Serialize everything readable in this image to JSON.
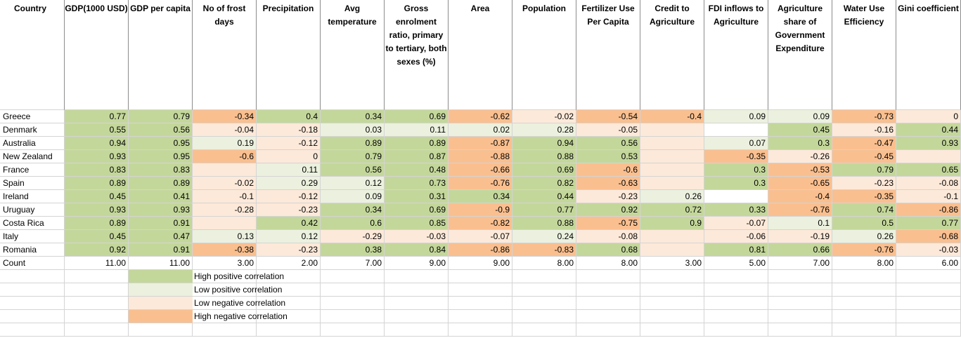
{
  "headers": [
    "Country",
    "GDP(1000 USD)",
    "GDP per capita",
    "No of frost days",
    "Precipitation",
    "Avg temperature",
    "Gross enrolment ratio, primary to tertiary, both sexes (%)",
    "Area",
    "Population",
    "Fertilizer Use Per Capita",
    "Credit to Agriculture",
    "FDI inflows to Agriculture",
    "Agriculture share of Government Expenditure",
    "Water Use Efficiency",
    "Gini coefficient"
  ],
  "rows": [
    {
      "country": "Greece",
      "values": [
        "0.77",
        "0.79",
        "-0.34",
        "0.4",
        "0.34",
        "0.69",
        "-0.62",
        "-0.02",
        "-0.54",
        "-0.4",
        "0.09",
        "0.09",
        "-0.73",
        "0"
      ],
      "classes": [
        "hp",
        "hp",
        "hn",
        "hp",
        "hp",
        "hp",
        "hn",
        "ln",
        "hn",
        "hn",
        "lp",
        "lp",
        "hn",
        "ln"
      ]
    },
    {
      "country": "Denmark",
      "values": [
        "0.55",
        "0.56",
        "-0.04",
        "-0.18",
        "0.03",
        "0.11",
        "0.02",
        "0.28",
        "-0.05",
        "",
        "",
        "0.45",
        "-0.16",
        "0.44"
      ],
      "classes": [
        "hp",
        "hp",
        "ln",
        "ln",
        "lp",
        "lp",
        "lp",
        "lp",
        "ln",
        "ln",
        "",
        "hp",
        "ln",
        "hp"
      ]
    },
    {
      "country": "Australia",
      "values": [
        "0.94",
        "0.95",
        "0.19",
        "-0.12",
        "0.89",
        "0.89",
        "-0.87",
        "0.94",
        "0.56",
        "",
        "0.07",
        "0.3",
        "-0.47",
        "0.93"
      ],
      "classes": [
        "hp",
        "hp",
        "lp",
        "ln",
        "hp",
        "hp",
        "hn",
        "hp",
        "hp",
        "ln",
        "lp",
        "hp",
        "hn",
        "hp"
      ]
    },
    {
      "country": "New Zealand",
      "values": [
        "0.93",
        "0.95",
        "-0.6",
        "0",
        "0.79",
        "0.87",
        "-0.88",
        "0.88",
        "0.53",
        "",
        "-0.35",
        "-0.26",
        "-0.45",
        ""
      ],
      "classes": [
        "hp",
        "hp",
        "hn",
        "ln",
        "hp",
        "hp",
        "hn",
        "hp",
        "hp",
        "ln",
        "hn",
        "ln",
        "hn",
        "ln"
      ]
    },
    {
      "country": "France",
      "values": [
        "0.83",
        "0.83",
        "",
        "0.11",
        "0.56",
        "0.48",
        "-0.66",
        "0.69",
        "-0.6",
        "",
        "0.3",
        "-0.53",
        "0.79",
        "0.65"
      ],
      "classes": [
        "hp",
        "hp",
        "ln",
        "lp",
        "hp",
        "hp",
        "hn",
        "hp",
        "hn",
        "ln",
        "hp",
        "hn",
        "hp",
        "hp"
      ]
    },
    {
      "country": "Spain",
      "values": [
        "0.89",
        "0.89",
        "-0.02",
        "0.29",
        "0.12",
        "0.73",
        "-0.76",
        "0.82",
        "-0.63",
        "",
        "0.3",
        "-0.65",
        "-0.23",
        "-0.08"
      ],
      "classes": [
        "hp",
        "hp",
        "ln",
        "lp",
        "lp",
        "hp",
        "hn",
        "hp",
        "hn",
        "ln",
        "hp",
        "hn",
        "ln",
        "ln"
      ]
    },
    {
      "country": "Ireland",
      "values": [
        "0.45",
        "0.41",
        "-0.1",
        "-0.12",
        "0.09",
        "0.31",
        "0.34",
        "0.44",
        "-0.23",
        "0.26",
        "",
        "-0.4",
        "-0.35",
        "-0.1"
      ],
      "classes": [
        "hp",
        "hp",
        "ln",
        "ln",
        "lp",
        "hp",
        "hp",
        "hp",
        "ln",
        "lp",
        "",
        "hn",
        "hn",
        "ln"
      ]
    },
    {
      "country": "Uruguay",
      "values": [
        "0.93",
        "0.93",
        "-0.28",
        "-0.23",
        "0.34",
        "0.69",
        "-0.9",
        "0.77",
        "0.92",
        "0.72",
        "0.33",
        "-0.76",
        "0.74",
        "-0.86"
      ],
      "classes": [
        "hp",
        "hp",
        "ln",
        "ln",
        "hp",
        "hp",
        "hn",
        "hp",
        "hp",
        "hp",
        "hp",
        "hn",
        "hp",
        "hn"
      ]
    },
    {
      "country": "Costa Rica",
      "values": [
        "0.89",
        "0.91",
        "",
        "0.42",
        "0.6",
        "0.85",
        "-0.82",
        "0.88",
        "-0.75",
        "0.9",
        "-0.07",
        "0.1",
        "0.5",
        "0.77"
      ],
      "classes": [
        "hp",
        "hp",
        "ln",
        "hp",
        "hp",
        "hp",
        "hn",
        "hp",
        "hn",
        "hp",
        "ln",
        "lp",
        "hp",
        "hp"
      ]
    },
    {
      "country": "Italy",
      "values": [
        "0.45",
        "0.47",
        "0.13",
        "0.12",
        "-0.29",
        "-0.03",
        "-0.07",
        "0.24",
        "-0.08",
        "",
        "-0.06",
        "-0.19",
        "0.26",
        "-0.68"
      ],
      "classes": [
        "hp",
        "hp",
        "lp",
        "lp",
        "ln",
        "ln",
        "ln",
        "lp",
        "ln",
        "ln",
        "ln",
        "ln",
        "lp",
        "hn"
      ]
    },
    {
      "country": "Romania",
      "values": [
        "0.92",
        "0.91",
        "-0.38",
        "-0.23",
        "0.38",
        "0.84",
        "-0.86",
        "-0.83",
        "0.68",
        "",
        "0.81",
        "0.66",
        "-0.76",
        "-0.03"
      ],
      "classes": [
        "hp",
        "hp",
        "hn",
        "ln",
        "hp",
        "hp",
        "hn",
        "hn",
        "hp",
        "ln",
        "hp",
        "hp",
        "hn",
        "ln"
      ]
    }
  ],
  "count_row": {
    "label": "Count",
    "values": [
      "11.00",
      "11.00",
      "3.00",
      "2.00",
      "7.00",
      "9.00",
      "9.00",
      "8.00",
      "8.00",
      "3.00",
      "5.00",
      "7.00",
      "8.00",
      "6.00"
    ]
  },
  "legend": [
    {
      "label": "High positive correlation",
      "class": "hp",
      "color": "#c4d79b"
    },
    {
      "label": "Low positive correlation",
      "class": "lp",
      "color": "#ebf1de"
    },
    {
      "label": "Low negative correlation",
      "class": "ln",
      "color": "#fde9d9"
    },
    {
      "label": "High negative correlation",
      "class": "hn",
      "color": "#fabf8f"
    }
  ]
}
